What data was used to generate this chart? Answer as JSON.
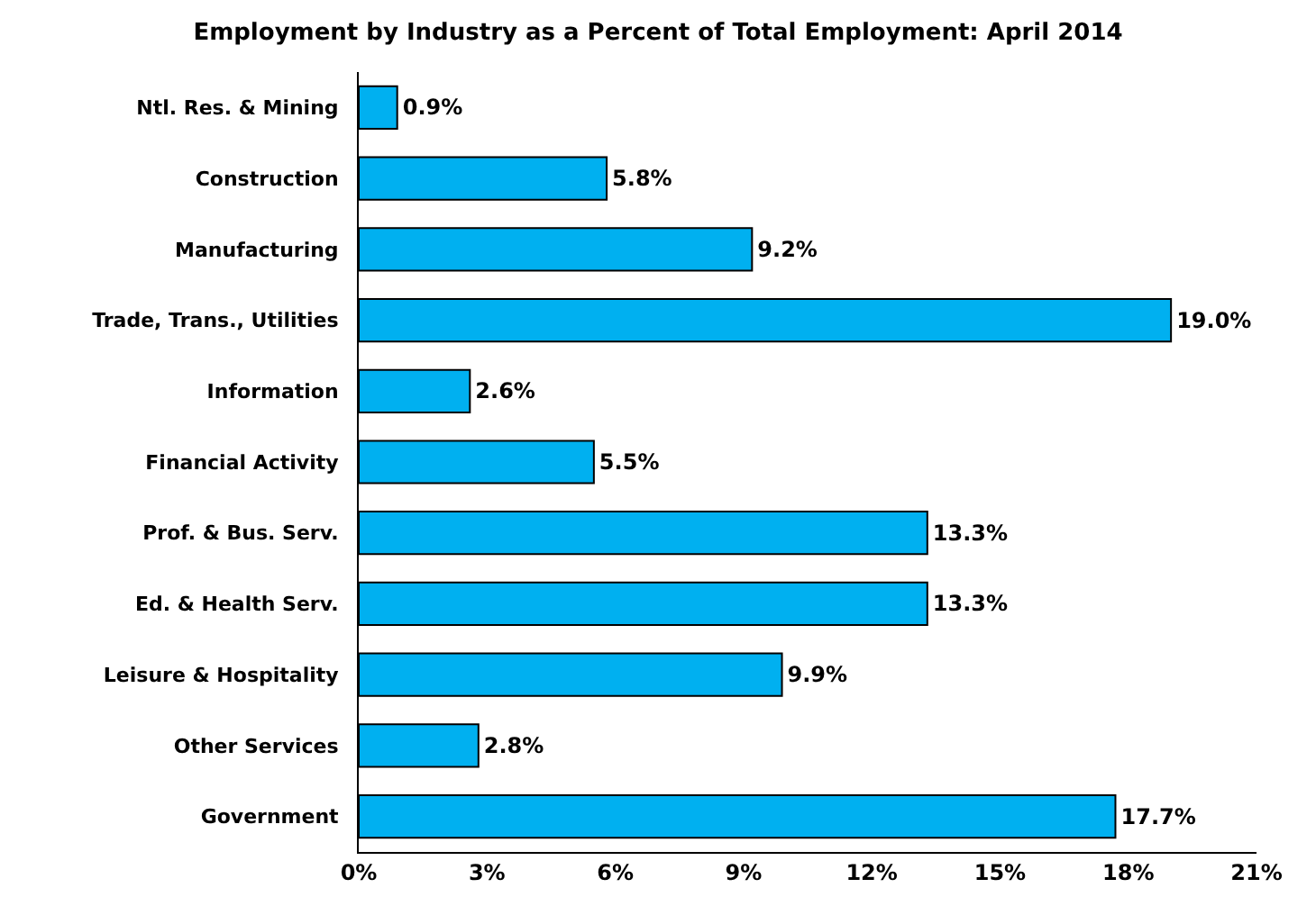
{
  "chart_data": {
    "type": "bar",
    "orientation": "horizontal",
    "title": "Employment by Industry as a Percent of Total Employment: April 2014",
    "categories": [
      "Ntl. Res. & Mining",
      "Construction",
      "Manufacturing",
      "Trade, Trans., Utilities",
      "Information",
      "Financial Activity",
      "Prof. & Bus. Serv.",
      "Ed. & Health Serv.",
      "Leisure & Hospitality",
      "Other Services",
      "Government"
    ],
    "values": [
      0.9,
      5.8,
      9.2,
      19.0,
      2.6,
      5.5,
      13.3,
      13.3,
      9.9,
      2.8,
      17.7
    ],
    "value_labels": [
      "0.9%",
      "5.8%",
      "9.2%",
      "19.0%",
      "2.6%",
      "5.5%",
      "13.3%",
      "13.3%",
      "9.9%",
      "2.8%",
      "17.7%"
    ],
    "color": "#00b0f0",
    "xlim": [
      0,
      21
    ],
    "xticks": [
      {
        "value": 0,
        "label": "0%"
      },
      {
        "value": 3,
        "label": "3%"
      },
      {
        "value": 6,
        "label": "6%"
      },
      {
        "value": 9,
        "label": "9%"
      },
      {
        "value": 12,
        "label": "12%"
      },
      {
        "value": 15,
        "label": "15%"
      },
      {
        "value": 18,
        "label": "18%"
      },
      {
        "value": 21,
        "label": "21%"
      }
    ],
    "legend": false
  }
}
